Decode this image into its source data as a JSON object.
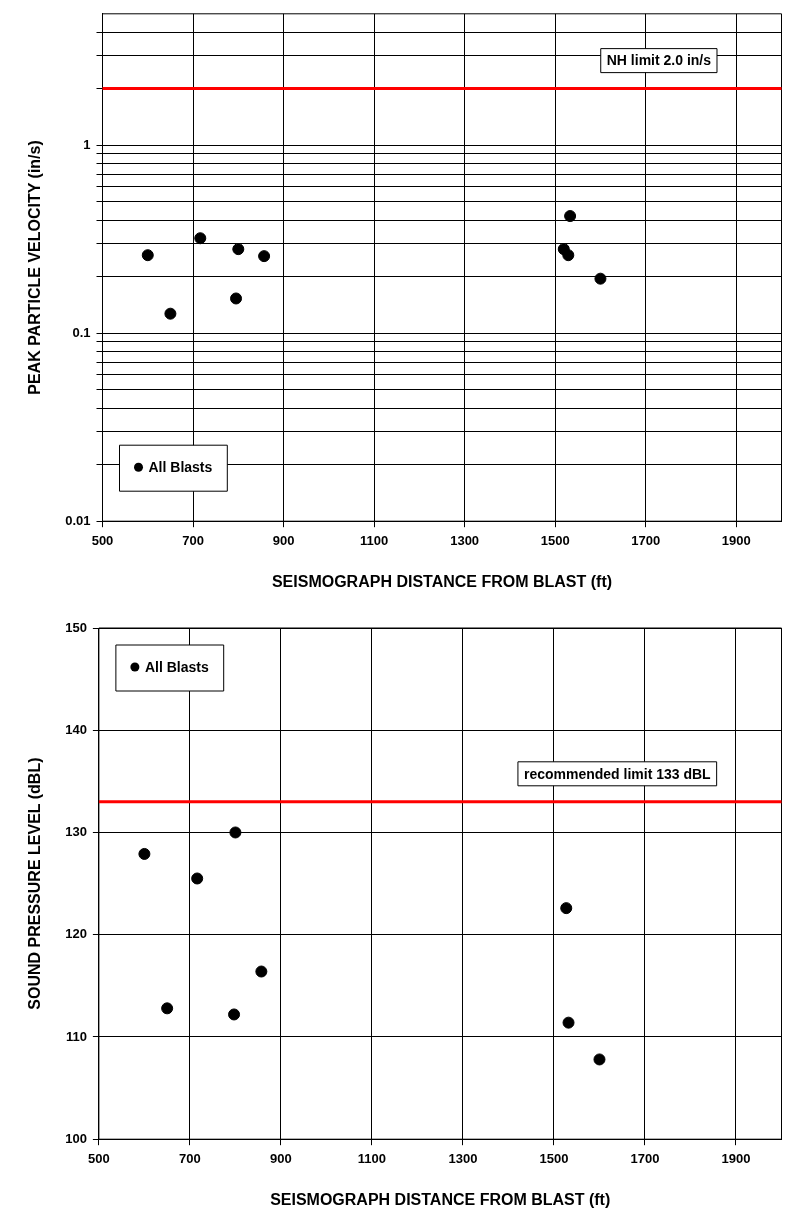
{
  "chart_data": [
    {
      "type": "scatter",
      "xlabel": "SEISMOGRAPH DISTANCE FROM BLAST (ft)",
      "ylabel": "PEAK PARTICLE VELOCITY (in/s)",
      "log": "y",
      "grid": true,
      "legend": "bottom left",
      "marker": "circle",
      "xlim": [
        500,
        2000
      ],
      "xticks": [
        500,
        700,
        900,
        1100,
        1300,
        1500,
        1700,
        1900
      ],
      "ylim": [
        0.01,
        5
      ],
      "yticks": [
        0.01,
        {
          "value": 0.02,
          "label": null
        },
        {
          "value": 0.03,
          "label": null
        },
        {
          "value": 0.04,
          "label": null
        },
        {
          "value": 0.05,
          "label": null
        },
        {
          "value": 0.06,
          "label": null
        },
        {
          "value": 0.07,
          "label": null
        },
        {
          "value": 0.08,
          "label": null
        },
        {
          "value": 0.09,
          "label": null
        },
        0.1,
        {
          "value": 0.2,
          "label": null
        },
        {
          "value": 0.3,
          "label": null
        },
        {
          "value": 0.4,
          "label": null
        },
        {
          "value": 0.5,
          "label": null
        },
        {
          "value": 0.6,
          "label": null
        },
        {
          "value": 0.7,
          "label": null
        },
        {
          "value": 0.8,
          "label": null
        },
        {
          "value": 0.9,
          "label": null
        },
        1,
        {
          "value": 2,
          "label": null
        },
        {
          "value": 3,
          "label": null
        },
        {
          "value": 4,
          "label": null
        }
      ],
      "series": [
        {
          "name": "All Blasts",
          "color": "#000000",
          "x": [
            600,
            650,
            716,
            800,
            795,
            857,
            1519,
            1533,
            1529,
            1600
          ],
          "values": [
            0.26,
            0.127,
            0.32,
            0.28,
            0.153,
            0.257,
            0.28,
            0.42,
            0.26,
            0.195
          ]
        }
      ],
      "ref_lines": [
        {
          "axis": "y",
          "value": 2.0,
          "label": "NH limit 2.0 in/s",
          "color": "#ff0000"
        }
      ]
    },
    {
      "type": "scatter",
      "xlabel": "SEISMOGRAPH DISTANCE FROM BLAST (ft)",
      "ylabel": "SOUND PRESSURE LEVEL (dBL)",
      "grid": true,
      "legend": "top left",
      "marker": "circle",
      "xlim": [
        500,
        2000
      ],
      "xticks": [
        500,
        700,
        900,
        1100,
        1300,
        1500,
        1700,
        1900
      ],
      "ylim": [
        100,
        150
      ],
      "yticks": [
        100,
        110,
        120,
        130,
        140,
        150
      ],
      "series": [
        {
          "name": "All Blasts",
          "color": "#000000",
          "x": [
            600,
            650,
            716,
            800,
            797,
            857,
            1527,
            1532,
            1600
          ],
          "values": [
            127.9,
            112.8,
            125.5,
            130.0,
            112.2,
            116.4,
            122.6,
            111.4,
            107.8
          ]
        }
      ],
      "ref_lines": [
        {
          "axis": "y",
          "value": 133,
          "label": "recommended limit 133 dBL",
          "color": "#ff0000"
        }
      ]
    }
  ]
}
